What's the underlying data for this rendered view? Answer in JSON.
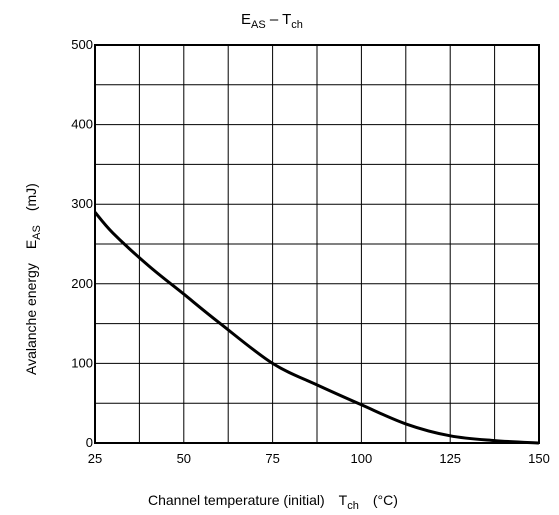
{
  "chart_data": {
    "type": "line",
    "title": {
      "main": "E",
      "main_sub": "AS",
      "dash": " – T",
      "dash_sub": "ch"
    },
    "xlabel": {
      "text": "Channel temperature (initial)",
      "sym": "T",
      "sym_sub": "ch",
      "unit": "(°C)"
    },
    "ylabel": {
      "text": "Avalanche energy",
      "sym": "E",
      "sym_sub": "AS",
      "unit": "(mJ)"
    },
    "xlim": [
      25,
      150
    ],
    "ylim": [
      0,
      500
    ],
    "xticks": [
      "25",
      "50",
      "75",
      "100",
      "125",
      "150"
    ],
    "yticks": [
      "0",
      "100",
      "200",
      "300",
      "400",
      "500"
    ],
    "grid": true,
    "series": [
      {
        "x": [
          25,
          30,
          40,
          50,
          60,
          75,
          87.5,
          100,
          112.5,
          125,
          137.5,
          150
        ],
        "y": [
          290,
          264,
          223,
          187,
          151,
          100,
          73,
          48,
          24,
          9,
          3,
          0
        ]
      }
    ]
  }
}
